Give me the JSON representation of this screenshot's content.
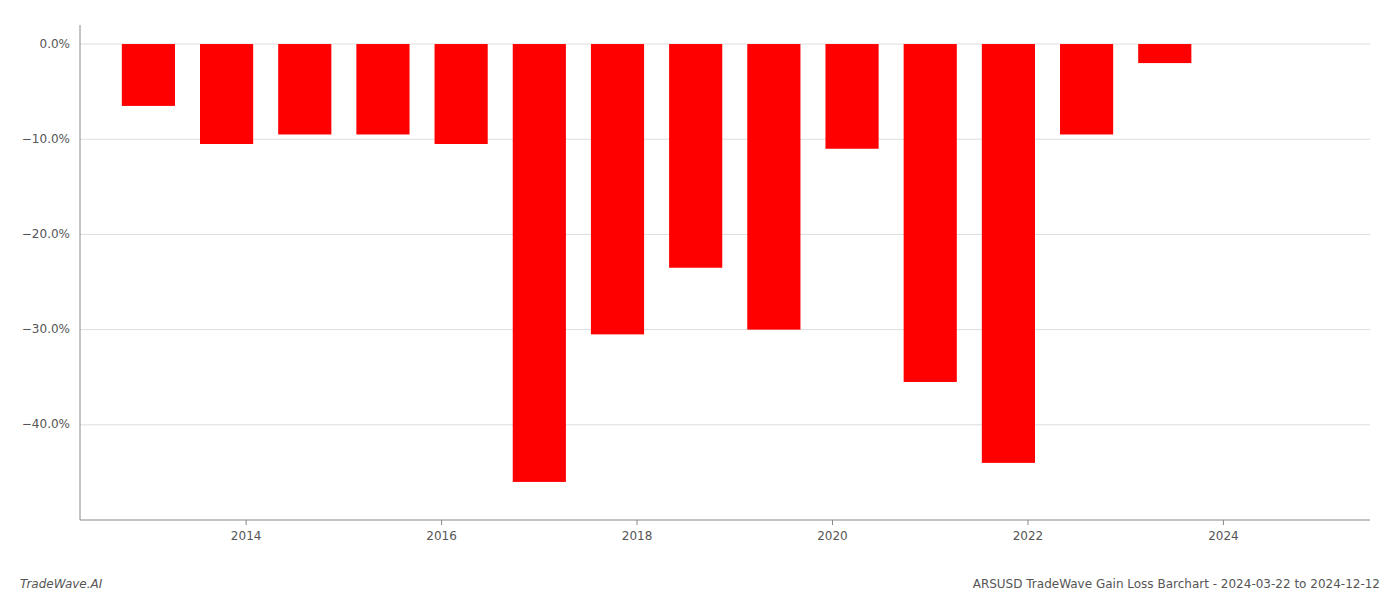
{
  "chart_data": {
    "type": "bar",
    "x": [
      2013,
      2013.8,
      2014.6,
      2015.4,
      2016.2,
      2017.0,
      2017.8,
      2018.6,
      2019.4,
      2020.2,
      2021.0,
      2021.8,
      2022.6,
      2023.4
    ],
    "values": [
      -6.5,
      -10.5,
      -9.5,
      -9.5,
      -10.5,
      -46.0,
      -30.5,
      -23.5,
      -30.0,
      -11.0,
      -35.5,
      -44.0,
      -9.5,
      -2.0
    ],
    "color": "#ff0000",
    "xlim": [
      2012.3,
      2025.5
    ],
    "xticks": [
      2014,
      2016,
      2018,
      2020,
      2022,
      2024
    ],
    "ylim": [
      -50,
      2
    ],
    "yticks": [
      {
        "value": 0.0,
        "label": "0.0%"
      },
      {
        "value": -10.0,
        "label": "−10.0%"
      },
      {
        "value": -20.0,
        "label": "−20.0%"
      },
      {
        "value": -30.0,
        "label": "−30.0%"
      },
      {
        "value": -40.0,
        "label": "−40.0%"
      }
    ],
    "grid": true,
    "annotations": [
      "TradeWave.AI",
      "ARSUSD TradeWave Gain Loss Barchart - 2024-03-22 to 2024-12-12"
    ]
  }
}
